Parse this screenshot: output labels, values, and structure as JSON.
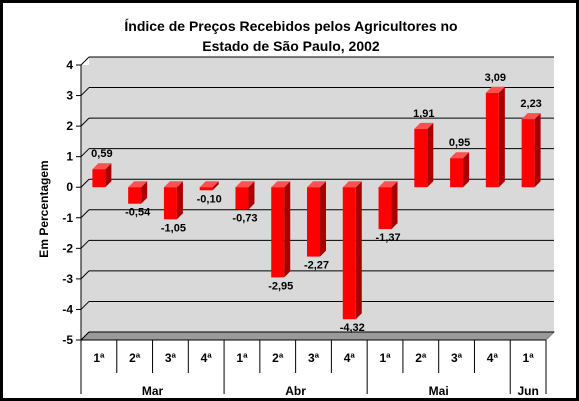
{
  "chart_data": {
    "type": "bar",
    "title_line1": "Índice de Preços Recebidos pelos Agricultores no",
    "title_line2": "Estado de São Paulo, 2002",
    "ylabel": "Em Percentagem",
    "xlabel": "",
    "ylim": [
      -5,
      4
    ],
    "y_ticks": [
      4,
      3,
      2,
      1,
      0,
      -1,
      -2,
      -3,
      -4,
      -5
    ],
    "grid": true,
    "bar_color": "#ff0000",
    "categories": [
      "1ª",
      "2ª",
      "3ª",
      "4ª",
      "1ª",
      "2ª",
      "3ª",
      "4ª",
      "1ª",
      "2ª",
      "3ª",
      "4ª",
      "1ª"
    ],
    "values": [
      0.59,
      -0.54,
      -1.05,
      -0.1,
      -0.73,
      -2.95,
      -2.27,
      -4.32,
      -1.37,
      1.91,
      0.95,
      3.09,
      2.23
    ],
    "value_labels": [
      "0,59",
      "-0,54",
      "-1,05",
      "-0,10",
      "-0,73",
      "-2,95",
      "-2,27",
      "-4,32",
      "-1,37",
      "1,91",
      "0,95",
      "3,09",
      "2,23"
    ],
    "groups": [
      {
        "label": "Mar",
        "count": 4
      },
      {
        "label": "Abr",
        "count": 4
      },
      {
        "label": "Mai",
        "count": 4
      },
      {
        "label": "Jun",
        "count": 1
      }
    ]
  }
}
